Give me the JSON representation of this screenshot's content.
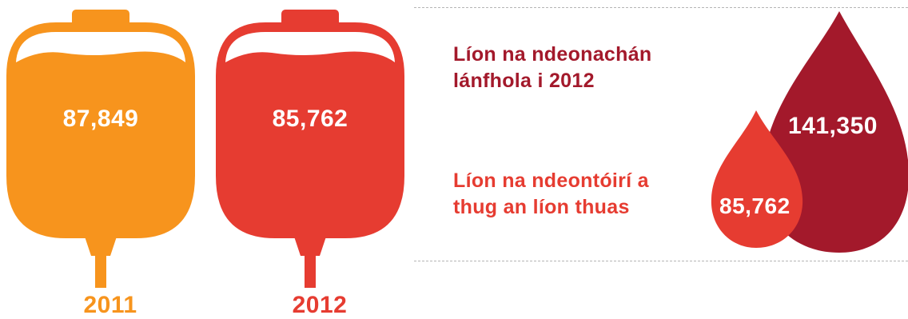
{
  "bags": [
    {
      "value": "87,849",
      "year": "2011",
      "color": "#f7941d"
    },
    {
      "value": "85,762",
      "year": "2012",
      "color": "#e63c31"
    }
  ],
  "stats": {
    "donations_label": "Líon na ndeonachán lánfhola i 2012",
    "donors_label": "Líon na ndeontóirí a thug an líon thuas",
    "label_color": "#a3192b"
  },
  "drops": {
    "donations_value": "141,350",
    "donations_color": "#a3192b",
    "donors_value": "85,762",
    "donors_color": "#e63c31"
  }
}
